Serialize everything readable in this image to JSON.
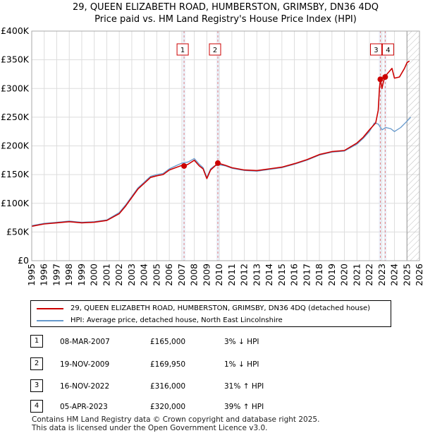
{
  "chart_data": {
    "type": "line",
    "title": "29, QUEEN ELIZABETH ROAD, HUMBERSTON, GRIMSBY, DN36 4DQ",
    "subtitle": "Price paid vs. HM Land Registry's House Price Index (HPI)",
    "xlabel": "",
    "ylabel": "",
    "xlim": [
      1995,
      2026
    ],
    "ylim": [
      0,
      400000
    ],
    "x_ticks": [
      "1995",
      "1996",
      "1997",
      "1998",
      "1999",
      "2000",
      "2001",
      "2002",
      "2003",
      "2004",
      "2005",
      "2006",
      "2007",
      "2008",
      "2009",
      "2010",
      "2011",
      "2012",
      "2013",
      "2014",
      "2015",
      "2016",
      "2017",
      "2018",
      "2019",
      "2020",
      "2021",
      "2022",
      "2023",
      "2024",
      "2025",
      "2026"
    ],
    "y_ticks": [
      {
        "value": 0,
        "label": "£0"
      },
      {
        "value": 50000,
        "label": "£50K"
      },
      {
        "value": 100000,
        "label": "£100K"
      },
      {
        "value": 150000,
        "label": "£150K"
      },
      {
        "value": 200000,
        "label": "£200K"
      },
      {
        "value": 250000,
        "label": "£250K"
      },
      {
        "value": 300000,
        "label": "£300K"
      },
      {
        "value": 350000,
        "label": "£350K"
      },
      {
        "value": 400000,
        "label": "£400K"
      }
    ],
    "grid": true,
    "future_hatch_from": 2025.0,
    "series": [
      {
        "name": "29, QUEEN ELIZABETH ROAD, HUMBERSTON, GRIMSBY, DN36 4DQ (detached house)",
        "color": "#cc0000",
        "x": [
          1995.0,
          1996.0,
          1997.0,
          1998.0,
          1999.0,
          2000.0,
          2001.0,
          2002.0,
          2002.5,
          2003.0,
          2003.5,
          2004.0,
          2004.5,
          2005.0,
          2005.5,
          2006.0,
          2006.5,
          2007.0,
          2007.18,
          2007.5,
          2008.0,
          2008.4,
          2008.7,
          2009.0,
          2009.3,
          2009.6,
          2009.88,
          2010.2,
          2010.5,
          2011.0,
          2012.0,
          2013.0,
          2014.0,
          2015.0,
          2016.0,
          2017.0,
          2018.0,
          2019.0,
          2020.0,
          2021.0,
          2021.5,
          2022.0,
          2022.5,
          2022.7,
          2022.8,
          2022.87,
          2023.0,
          2023.1,
          2023.2,
          2023.26,
          2023.4,
          2023.6,
          2023.8,
          2024.0,
          2024.4,
          2024.8,
          2025.0,
          2025.2
        ],
        "y": [
          60000,
          64000,
          66000,
          68000,
          66000,
          67000,
          70000,
          82000,
          95000,
          110000,
          125000,
          135000,
          145000,
          148000,
          150000,
          158000,
          162000,
          166000,
          165000,
          168000,
          175000,
          165000,
          160000,
          143000,
          158000,
          164000,
          169950,
          168000,
          166000,
          162000,
          158000,
          157000,
          160000,
          163000,
          169000,
          176000,
          185000,
          190000,
          192000,
          205000,
          215000,
          228000,
          240000,
          262000,
          300000,
          316000,
          300000,
          310000,
          318000,
          320000,
          325000,
          330000,
          335000,
          318000,
          320000,
          335000,
          345000,
          348000
        ]
      },
      {
        "name": "HPI: Average price, detached house, North East Lincolnshire",
        "color": "#6699cc",
        "x": [
          1995.0,
          1996.0,
          1997.0,
          1998.0,
          1999.0,
          2000.0,
          2001.0,
          2002.0,
          2002.5,
          2003.0,
          2003.5,
          2004.0,
          2004.5,
          2005.0,
          2005.5,
          2006.0,
          2006.5,
          2007.0,
          2007.5,
          2008.0,
          2008.4,
          2008.7,
          2009.0,
          2009.3,
          2009.6,
          2010.0,
          2010.5,
          2011.0,
          2012.0,
          2013.0,
          2014.0,
          2015.0,
          2016.0,
          2017.0,
          2018.0,
          2019.0,
          2020.0,
          2021.0,
          2021.5,
          2022.0,
          2022.4,
          2022.7,
          2023.0,
          2023.3,
          2023.7,
          2024.0,
          2024.5,
          2025.0,
          2025.3
        ],
        "y": [
          61000,
          65000,
          67000,
          69000,
          67000,
          68000,
          71000,
          84000,
          97000,
          112000,
          127000,
          137000,
          147000,
          150000,
          152000,
          160000,
          165000,
          170000,
          172000,
          178000,
          168000,
          162000,
          145000,
          160000,
          165000,
          167000,
          165000,
          161000,
          157000,
          156000,
          159000,
          162000,
          168000,
          175000,
          184000,
          189000,
          191000,
          203000,
          213000,
          225000,
          240000,
          238000,
          228000,
          232000,
          230000,
          225000,
          232000,
          243000,
          250000
        ]
      }
    ],
    "transactions": [
      {
        "label": "1",
        "date": "08-MAR-2007",
        "x": 2007.18,
        "price": 165000,
        "price_label": "£165,000",
        "pct": "3%",
        "direction": "↓",
        "hpi": "HPI"
      },
      {
        "label": "2",
        "date": "19-NOV-2009",
        "x": 2009.88,
        "price": 169950,
        "price_label": "£169,950",
        "pct": "1%",
        "direction": "↓",
        "hpi": "HPI"
      },
      {
        "label": "3",
        "date": "16-NOV-2022",
        "x": 2022.87,
        "price": 316000,
        "price_label": "£316,000",
        "pct": "31%",
        "direction": "↑",
        "hpi": "HPI"
      },
      {
        "label": "4",
        "date": "05-APR-2023",
        "x": 2023.26,
        "price": 320000,
        "price_label": "£320,000",
        "pct": "39%",
        "direction": "↑",
        "hpi": "HPI"
      }
    ]
  },
  "legend": [
    {
      "label": "29, QUEEN ELIZABETH ROAD, HUMBERSTON, GRIMSBY, DN36 4DQ (detached house)",
      "color": "#cc0000"
    },
    {
      "label": "HPI: Average price, detached house, North East Lincolnshire",
      "color": "#6699cc"
    }
  ],
  "footer": {
    "line1": "Contains HM Land Registry data © Crown copyright and database right 2025.",
    "line2": "This data is licensed under the Open Government Licence v3.0."
  }
}
